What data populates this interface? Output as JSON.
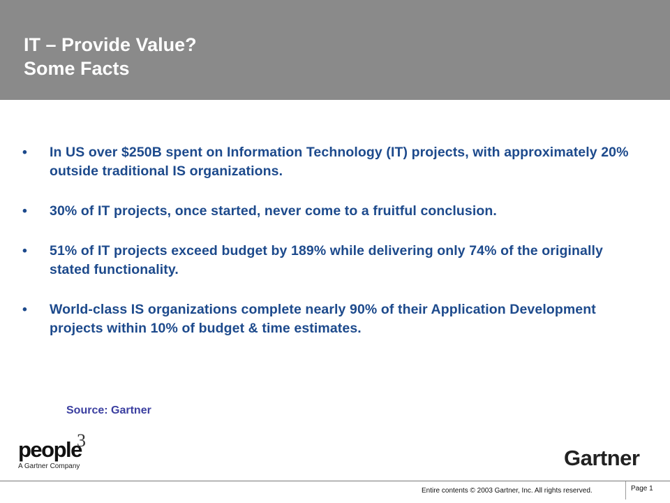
{
  "slide": {
    "title_line1": "IT – Provide Value?",
    "title_line2": "Some Facts",
    "bullets": [
      {
        "text": "In US over $250B spent on Information Technology (IT) projects, with approximately 20% outside traditional IS organizations."
      },
      {
        "text": "30% of IT projects, once started, never come to a fruitful conclusion."
      },
      {
        "text": "51% of IT projects exceed budget by 189% while delivering only 74% of the originally stated functionality."
      },
      {
        "text": "World-class IS organizations complete nearly 90% of their Application Development projects within 10% of budget & time estimates."
      }
    ],
    "bullet_glyph": "•",
    "source": "Source: Gartner"
  },
  "logos": {
    "people3_word": "people",
    "people3_sup": "3",
    "people3_tagline": "A Gartner Company",
    "gartner": "Gartner"
  },
  "footer": {
    "copyright": "Entire contents © 2003 Gartner, Inc. All rights reserved.",
    "page": "Page 1"
  },
  "colors": {
    "header_bg": "#8a8a8a",
    "title_text": "#ffffff",
    "bullet_text": "#1d4a8c",
    "source_text": "#3b3fa0"
  }
}
